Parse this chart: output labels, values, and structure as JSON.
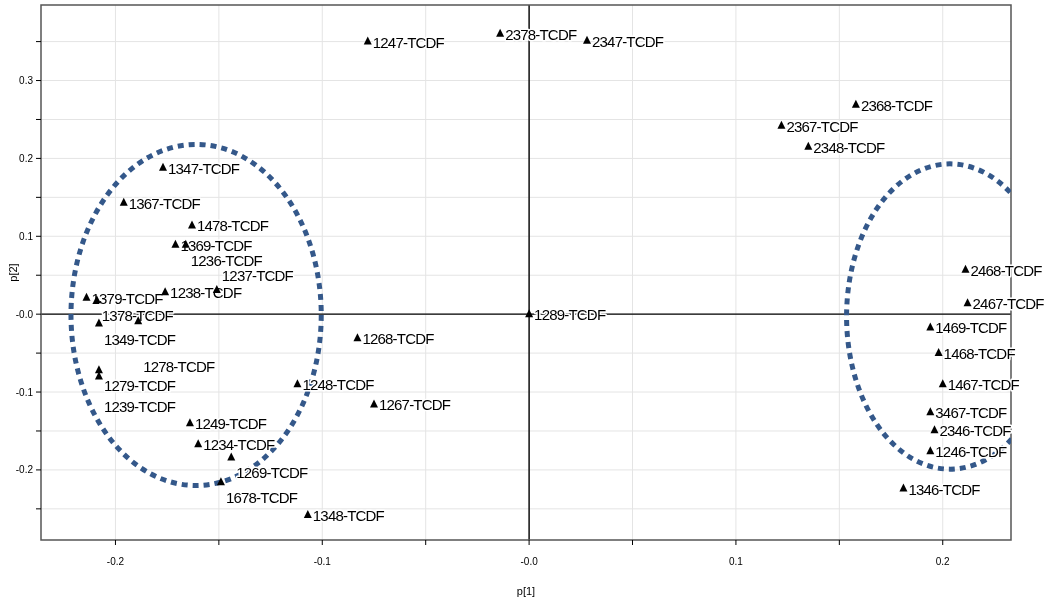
{
  "chart_data": {
    "type": "scatter",
    "xlabel": "p[1]",
    "ylabel": "p[2]",
    "xlim": [
      -0.236,
      0.233
    ],
    "ylim": [
      -0.29,
      0.397
    ],
    "xticks": [
      {
        "value": -0.2,
        "label": "-0.2"
      },
      {
        "value": -0.15,
        "label": null
      },
      {
        "value": -0.1,
        "label": "-0.1"
      },
      {
        "value": -0.05,
        "label": null
      },
      {
        "value": 0,
        "label": "-0.0"
      },
      {
        "value": 0.05,
        "label": null
      },
      {
        "value": 0.1,
        "label": "0.1"
      },
      {
        "value": 0.15,
        "label": null
      },
      {
        "value": 0.2,
        "label": "0.2"
      }
    ],
    "yticks": [
      {
        "value": -0.25,
        "label": null
      },
      {
        "value": -0.2,
        "label": "-0.2"
      },
      {
        "value": -0.15,
        "label": null
      },
      {
        "value": -0.1,
        "label": "-0.1"
      },
      {
        "value": -0.05,
        "label": null
      },
      {
        "value": 0,
        "label": "-0.0"
      },
      {
        "value": 0.05,
        "label": null
      },
      {
        "value": 0.1,
        "label": "0.1"
      },
      {
        "value": 0.15,
        "label": null
      },
      {
        "value": 0.2,
        "label": "0.2"
      },
      {
        "value": 0.25,
        "label": null
      },
      {
        "value": 0.3,
        "label": "0.3"
      },
      {
        "value": 0.35,
        "label": null
      }
    ],
    "grid": true,
    "marker": "triangle",
    "series": [
      {
        "color": "#000000",
        "x": [
          -0.078,
          -0.014,
          0.028,
          0.158,
          0.122,
          0.135,
          -0.177,
          -0.196,
          -0.163,
          -0.171,
          -0.166,
          -0.176,
          -0.151,
          -0.214,
          -0.209,
          -0.208,
          -0.189,
          -0.208,
          -0.208,
          -0.083,
          0.0,
          -0.112,
          -0.075,
          -0.164,
          -0.16,
          -0.144,
          -0.149,
          -0.107,
          0.211,
          0.212,
          0.194,
          0.198,
          0.2,
          0.194,
          0.196,
          0.194,
          0.181
        ],
        "values": [
          0.35,
          0.36,
          0.351,
          0.269,
          0.242,
          0.215,
          0.188,
          0.143,
          0.114,
          0.089,
          0.089,
          0.028,
          0.031,
          0.021,
          0.018,
          -0.012,
          -0.009,
          -0.072,
          -0.08,
          -0.031,
          0.0,
          -0.09,
          -0.116,
          -0.14,
          -0.167,
          -0.184,
          -0.216,
          -0.258,
          0.057,
          0.014,
          -0.017,
          -0.05,
          -0.09,
          -0.126,
          -0.149,
          -0.176,
          -0.224
        ]
      }
    ],
    "annotations": [
      {
        "text": "1247-TCDF",
        "x": -0.078,
        "y": 0.35
      },
      {
        "text": "2378-TCDF",
        "x": -0.014,
        "y": 0.36
      },
      {
        "text": "2347-TCDF",
        "x": 0.028,
        "y": 0.351
      },
      {
        "text": "2368-TCDF",
        "x": 0.158,
        "y": 0.269
      },
      {
        "text": "2367-TCDF",
        "x": 0.122,
        "y": 0.242
      },
      {
        "text": "2348-TCDF",
        "x": 0.135,
        "y": 0.215
      },
      {
        "text": "1347-TCDF",
        "x": -0.177,
        "y": 0.188
      },
      {
        "text": "1367-TCDF",
        "x": -0.196,
        "y": 0.143
      },
      {
        "text": "1478-TCDF",
        "x": -0.163,
        "y": 0.114
      },
      {
        "text": "1369-TCDF",
        "x": -0.171,
        "y": 0.089
      },
      {
        "text": "1236-TCDF",
        "x": -0.166,
        "y": 0.089
      },
      {
        "text": "1238-TCDF",
        "x": -0.176,
        "y": 0.028
      },
      {
        "text": "1237-TCDF",
        "x": -0.151,
        "y": 0.031
      },
      {
        "text": "1379-TCDF",
        "x": -0.214,
        "y": 0.021
      },
      {
        "text": "1378-TCDF",
        "x": -0.209,
        "y": 0.018
      },
      {
        "text": "1349-TCDF",
        "x": -0.208,
        "y": -0.012
      },
      {
        "text": "1278-TCDF",
        "x": -0.189,
        "y": -0.009
      },
      {
        "text": "1279-TCDF",
        "x": -0.208,
        "y": -0.072
      },
      {
        "text": "1239-TCDF",
        "x": -0.208,
        "y": -0.08
      },
      {
        "text": "1268-TCDF",
        "x": -0.083,
        "y": -0.031
      },
      {
        "text": "1289-TCDF",
        "x": 0.0,
        "y": 0.0
      },
      {
        "text": "1248-TCDF",
        "x": -0.112,
        "y": -0.09
      },
      {
        "text": "1267-TCDF",
        "x": -0.075,
        "y": -0.116
      },
      {
        "text": "1249-TCDF",
        "x": -0.164,
        "y": -0.14
      },
      {
        "text": "1234-TCDF",
        "x": -0.16,
        "y": -0.167
      },
      {
        "text": "1269-TCDF",
        "x": -0.144,
        "y": -0.184
      },
      {
        "text": "1678-TCDF",
        "x": -0.149,
        "y": -0.216
      },
      {
        "text": "1348-TCDF",
        "x": -0.107,
        "y": -0.258
      },
      {
        "text": "2468-TCDF",
        "x": 0.211,
        "y": 0.057
      },
      {
        "text": "2467-TCDF",
        "x": 0.212,
        "y": 0.014
      },
      {
        "text": "1469-TCDF",
        "x": 0.194,
        "y": -0.017
      },
      {
        "text": "1468-TCDF",
        "x": 0.198,
        "y": -0.05
      },
      {
        "text": "1467-TCDF",
        "x": 0.2,
        "y": -0.09
      },
      {
        "text": "3467-TCDF",
        "x": 0.194,
        "y": -0.126
      },
      {
        "text": "2346-TCDF",
        "x": 0.196,
        "y": -0.149
      },
      {
        "text": "1246-TCDF",
        "x": 0.194,
        "y": -0.176
      },
      {
        "text": "1346-TCDF",
        "x": 0.181,
        "y": -0.224
      }
    ]
  }
}
